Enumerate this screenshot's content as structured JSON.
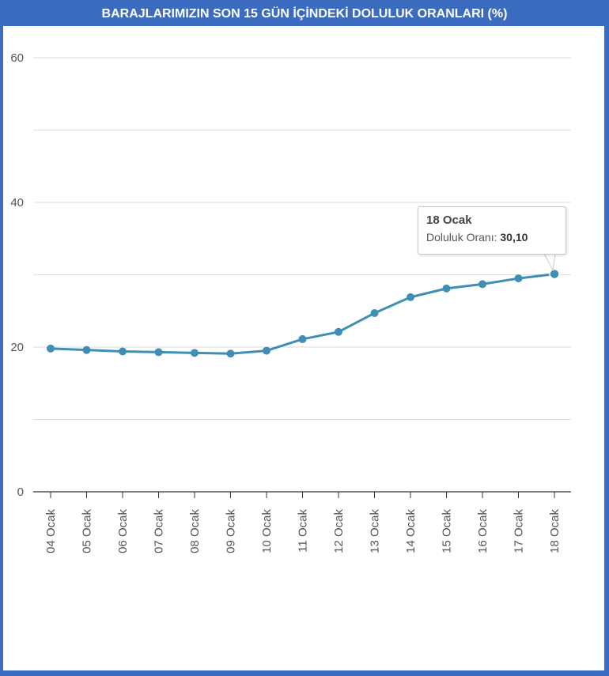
{
  "title": "BARAJLARIMIZIN SON 15 GÜN İÇİNDEKİ DOLULUK ORANLARI (%)",
  "colors": {
    "frame": "#3b6cc0",
    "series": "#3f8fb5",
    "grid": "#dddddd",
    "axis": "#333333"
  },
  "tooltip": {
    "title": "18 Ocak",
    "label": "Doluluk Oranı: ",
    "value": "30,10"
  },
  "chart_data": {
    "type": "line",
    "categories": [
      "04 Ocak",
      "05 Ocak",
      "06 Ocak",
      "07 Ocak",
      "08 Ocak",
      "09 Ocak",
      "10 Ocak",
      "11 Ocak",
      "12 Ocak",
      "13 Ocak",
      "14 Ocak",
      "15 Ocak",
      "16 Ocak",
      "17 Ocak",
      "18 Ocak"
    ],
    "series": [
      {
        "values": [
          19.8,
          19.6,
          19.4,
          19.3,
          19.2,
          19.1,
          19.5,
          21.1,
          22.1,
          24.7,
          26.9,
          28.1,
          28.7,
          29.5,
          30.1
        ]
      }
    ],
    "ylim": [
      0,
      60
    ],
    "yticks": [
      "0",
      "20",
      "40",
      "60"
    ],
    "grid": true,
    "xlabel": "",
    "ylabel": ""
  }
}
